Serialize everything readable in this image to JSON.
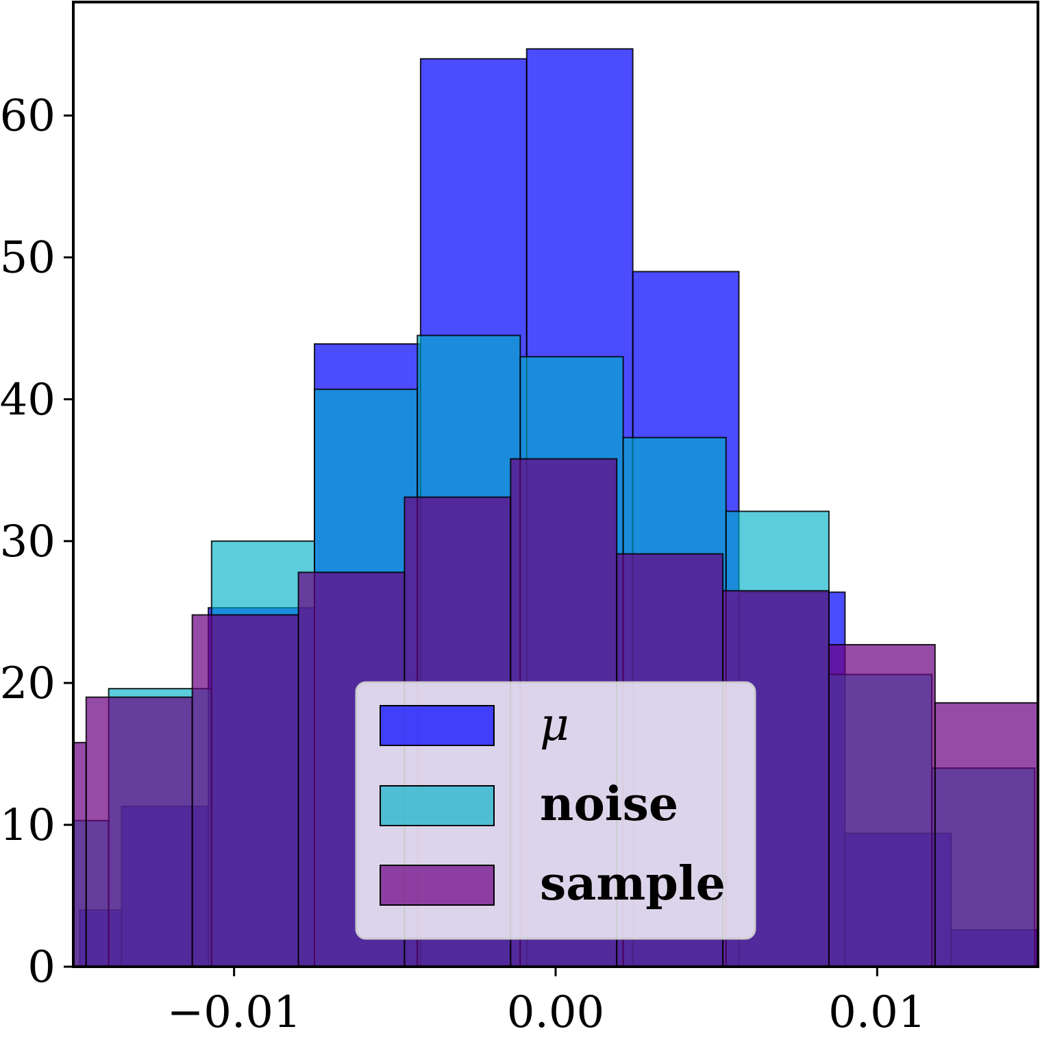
{
  "chart_data": {
    "type": "bar",
    "title": "",
    "xlabel": "",
    "ylabel": "",
    "xlim": [
      -0.015,
      0.015
    ],
    "ylim": [
      0,
      68
    ],
    "x_ticks": [
      -0.01,
      0.0,
      0.01
    ],
    "x_tick_labels": [
      "−0.01",
      "0.00",
      "0.01"
    ],
    "y_ticks": [
      0,
      10,
      20,
      30,
      40,
      50,
      60
    ],
    "y_tick_labels": [
      "0",
      "10",
      "20",
      "30",
      "40",
      "50",
      "60"
    ],
    "grid": false,
    "legend_position": "bottom-center",
    "series": [
      {
        "name": "μ",
        "color": "#0000ff",
        "alpha": 0.7,
        "edges": [
          -0.0148,
          -0.0135,
          -0.0108,
          -0.0075,
          -0.0042,
          -0.0009,
          0.0024,
          0.0057,
          0.009,
          0.0123,
          0.0156
        ],
        "values": [
          4.0,
          11.3,
          25.3,
          43.9,
          64.0,
          64.7,
          49.0,
          26.4,
          9.4,
          2.6
        ]
      },
      {
        "name": "noise",
        "color": "#00b0c8",
        "alpha": 0.64,
        "edges": [
          -0.0172,
          -0.0139,
          -0.0107,
          -0.0075,
          -0.0043,
          -0.0011,
          0.0021,
          0.0053,
          0.0085,
          0.0117,
          0.0149
        ],
        "values": [
          10.3,
          19.6,
          30.0,
          40.7,
          44.5,
          43.0,
          37.3,
          32.1,
          20.6,
          14.0
        ]
      },
      {
        "name": "sample",
        "color": "#6a0080",
        "alpha": 0.7,
        "edges": [
          -0.0179,
          -0.0146,
          -0.0113,
          -0.008,
          -0.0047,
          -0.0014,
          0.0019,
          0.0052,
          0.0085,
          0.0118,
          0.0151
        ],
        "values": [
          15.8,
          19.0,
          24.8,
          27.8,
          33.1,
          35.8,
          29.1,
          26.5,
          22.7,
          18.6
        ]
      }
    ]
  }
}
